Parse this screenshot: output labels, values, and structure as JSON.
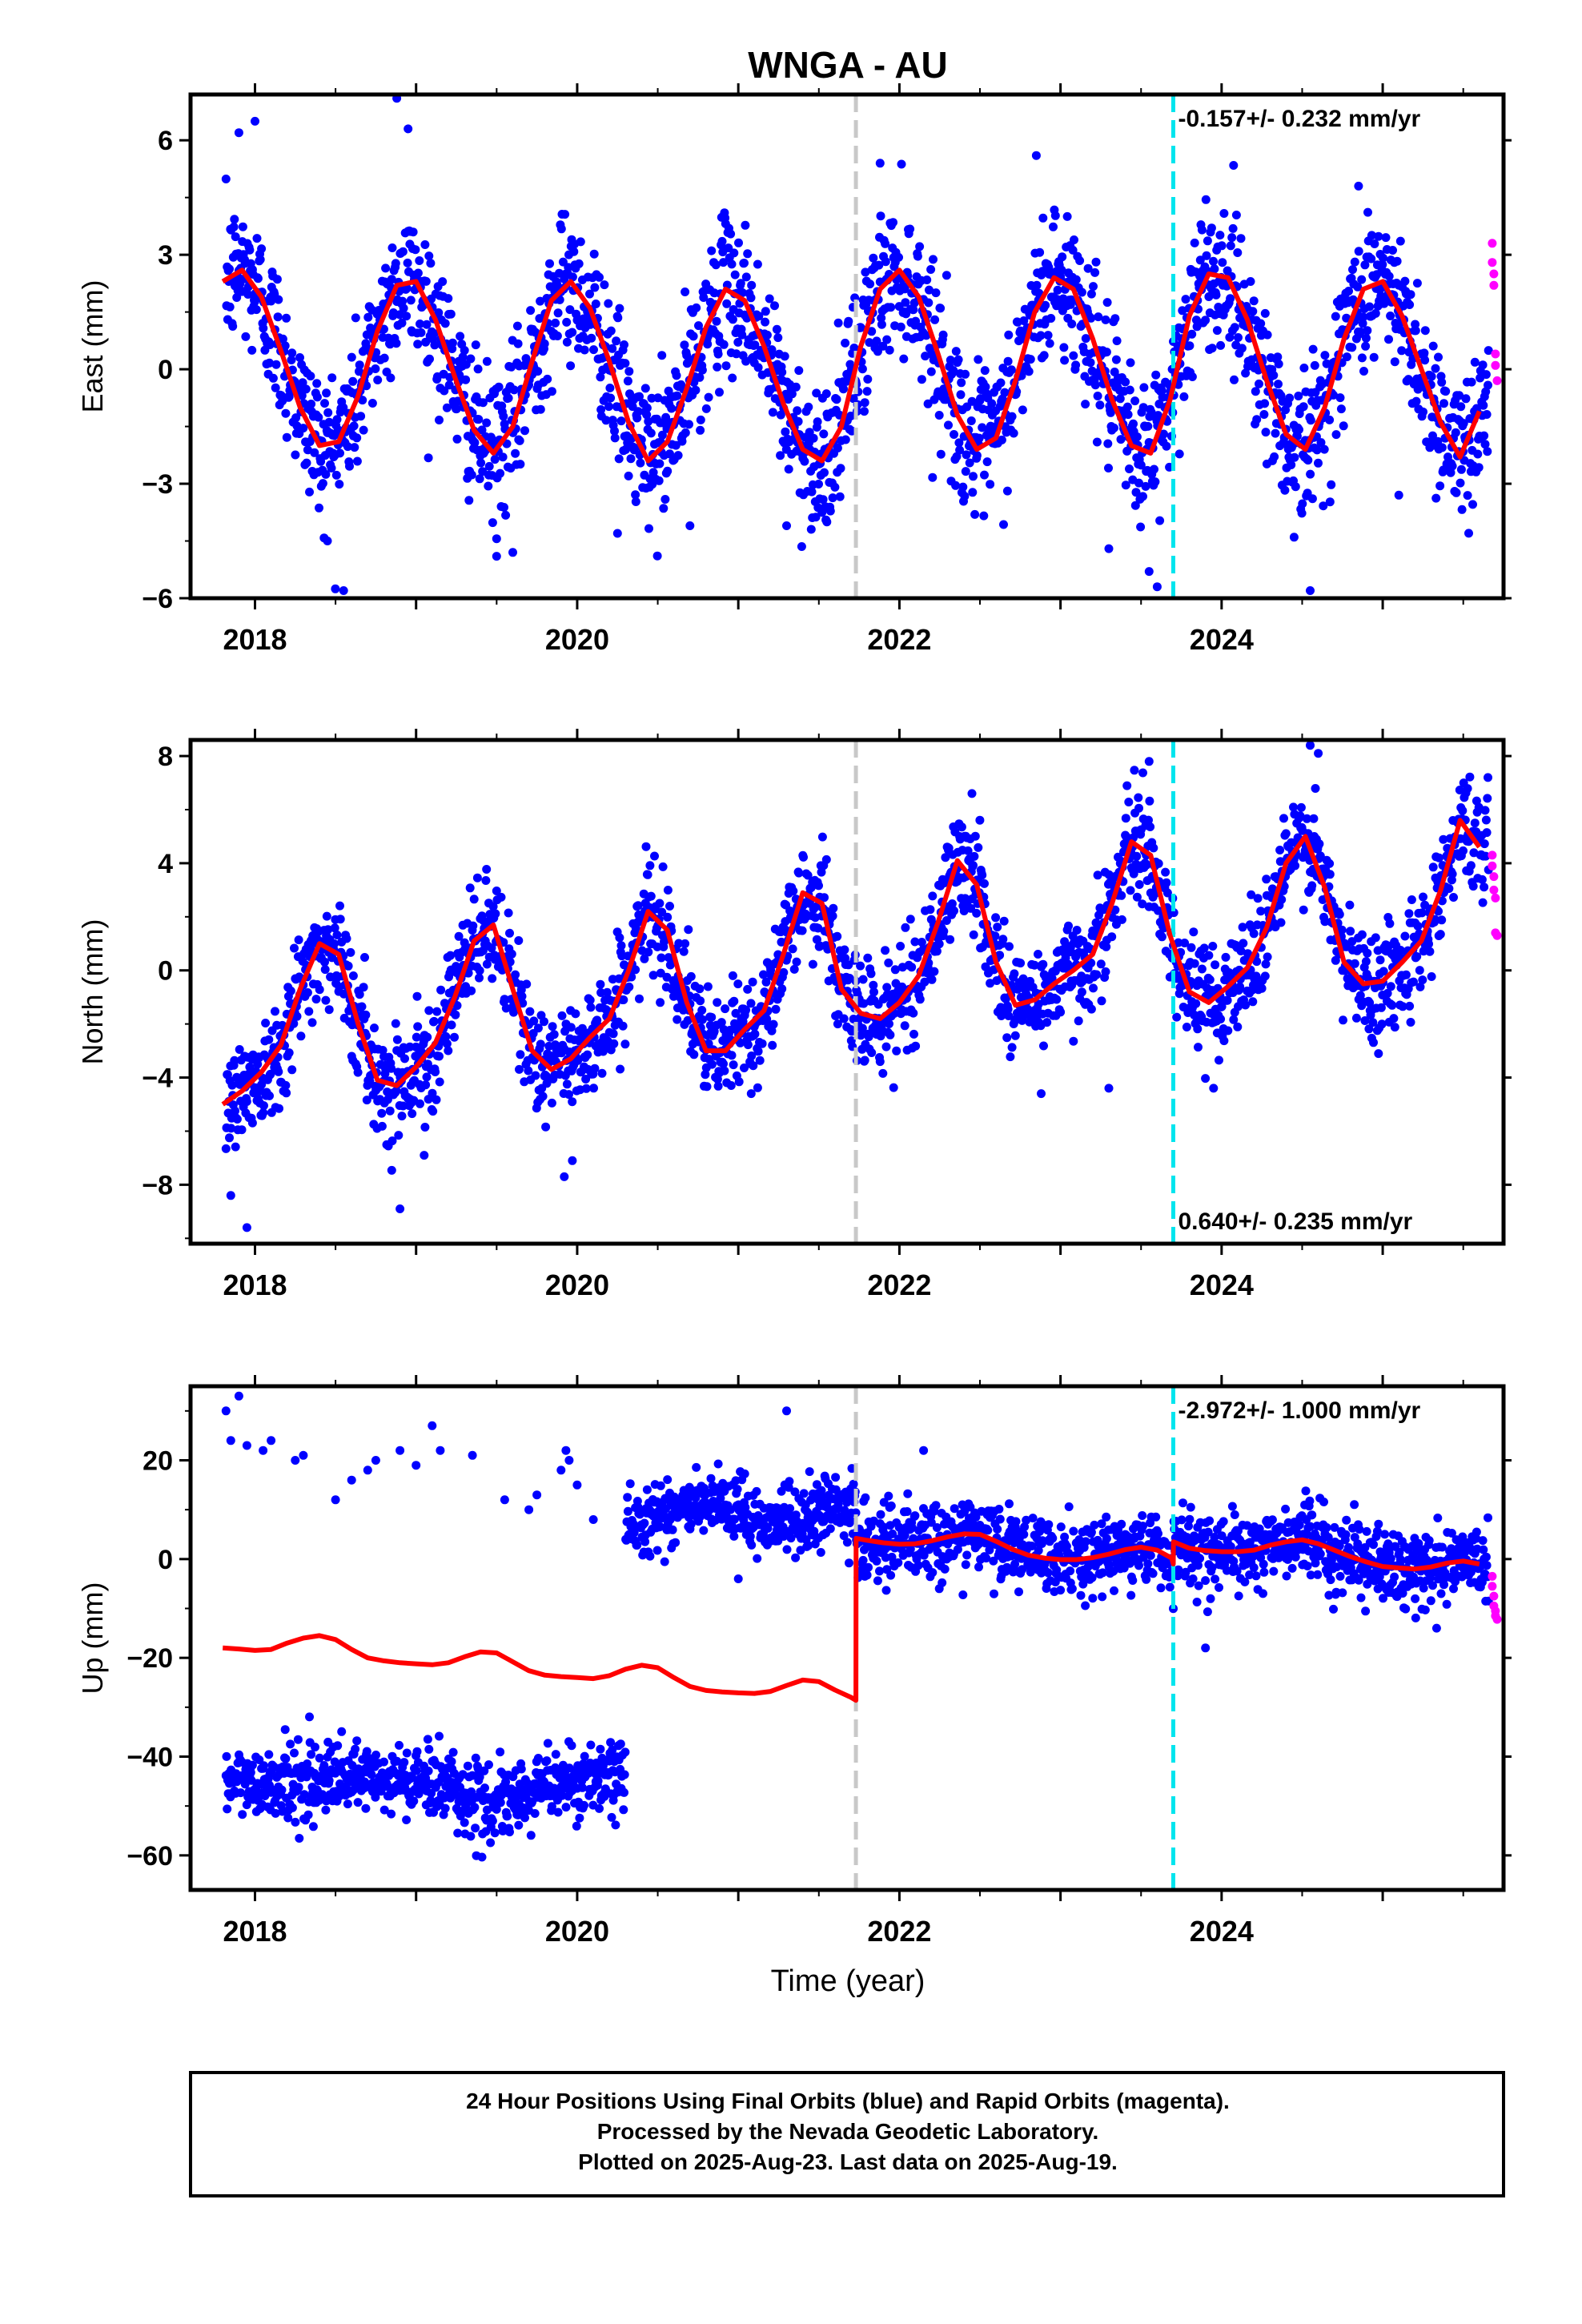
{
  "chart_data": {
    "title": "WNGA - AU",
    "xlabel": "Time (year)",
    "x_ticks": [
      2018,
      2020,
      2022,
      2024
    ],
    "xlim": [
      2017.6,
      2025.75
    ],
    "colors": {
      "final": "#0000ff",
      "rapid": "#ff00ff",
      "model": "#ff0000",
      "equipment_change": "#c8c8c8",
      "other_change": "#00e5ee"
    },
    "vertical_lines": [
      {
        "x": 2021.73,
        "color": "#c8c8c8"
      },
      {
        "x": 2023.7,
        "color": "#00e5ee"
      }
    ],
    "panels": [
      {
        "type": "scatter",
        "ylabel": "East (mm)",
        "ylim": [
          -6,
          7.2
        ],
        "y_ticks": [
          6,
          3,
          0,
          -3,
          -6
        ],
        "rate_text": "-0.157+/- 0.232 mm/yr",
        "rate_position": "top-right",
        "model": {
          "name": "fit",
          "x": [
            2017.8,
            2017.92,
            2018.04,
            2018.16,
            2018.28,
            2018.4,
            2018.52,
            2018.64,
            2018.76,
            2018.88,
            2019.0,
            2019.12,
            2019.24,
            2019.36,
            2019.48,
            2019.6,
            2019.72,
            2019.84,
            2019.96,
            2020.08,
            2020.2,
            2020.32,
            2020.44,
            2020.56,
            2020.68,
            2020.8,
            2020.92,
            2021.04,
            2021.16,
            2021.28,
            2021.4,
            2021.52,
            2021.64,
            2021.76,
            2021.88,
            2022.0,
            2022.12,
            2022.24,
            2022.36,
            2022.48,
            2022.6,
            2022.72,
            2022.84,
            2022.96,
            2023.08,
            2023.2,
            2023.32,
            2023.44,
            2023.56,
            2023.68,
            2023.8,
            2023.92,
            2024.04,
            2024.16,
            2024.28,
            2024.4,
            2024.52,
            2024.64,
            2024.76,
            2024.88,
            2025.0,
            2025.12,
            2025.24,
            2025.36,
            2025.48,
            2025.6
          ],
          "y": [
            2.3,
            2.6,
            1.9,
            0.5,
            -1.0,
            -2.0,
            -1.9,
            -0.7,
            1.0,
            2.2,
            2.3,
            1.3,
            -0.2,
            -1.6,
            -2.2,
            -1.5,
            0.2,
            1.8,
            2.3,
            1.6,
            0.2,
            -1.4,
            -2.4,
            -1.9,
            -0.5,
            1.1,
            2.1,
            1.8,
            0.6,
            -0.9,
            -2.1,
            -2.4,
            -1.5,
            0.6,
            2.1,
            2.6,
            1.9,
            0.4,
            -1.2,
            -2.1,
            -1.8,
            -0.3,
            1.5,
            2.4,
            2.1,
            0.8,
            -0.8,
            -2.0,
            -2.2,
            -0.8,
            1.4,
            2.5,
            2.4,
            1.3,
            -0.3,
            -1.7,
            -2.1,
            -1.0,
            0.8,
            2.1,
            2.3,
            1.4,
            0.0,
            -1.4,
            -2.3,
            -1.1
          ]
        },
        "rapid": {
          "x": [
            2025.68,
            2025.68,
            2025.69,
            2025.69,
            2025.7,
            2025.7,
            2025.71
          ],
          "y": [
            3.3,
            2.8,
            2.5,
            2.2,
            0.4,
            0.1,
            -0.3
          ]
        },
        "scatter_sigma": 0.95,
        "outliers": {
          "x": [
            2017.9,
            2018.0,
            2018.45,
            2018.55,
            2018.88,
            2018.95,
            2019.5,
            2019.6,
            2020.25,
            2020.7,
            2021.3,
            2021.55,
            2021.88,
            2022.85,
            2023.3,
            2023.55,
            2023.6,
            2024.55,
            2024.45,
            2024.85,
            2025.1
          ],
          "y": [
            6.2,
            6.5,
            -4.5,
            -5.8,
            7.1,
            6.3,
            -4.9,
            -4.8,
            -4.3,
            -4.1,
            -4.1,
            -4.0,
            5.4,
            5.6,
            -4.7,
            -5.3,
            -5.7,
            -5.8,
            -4.4,
            4.8,
            -3.3
          ]
        }
      },
      {
        "type": "scatter",
        "ylabel": "North (mm)",
        "ylim": [
          -10.2,
          8.6
        ],
        "y_ticks": [
          8,
          4,
          0,
          -4,
          -8
        ],
        "rate_text": "0.640+/- 0.235 mm/yr",
        "rate_position": "bottom-right",
        "model": {
          "name": "fit",
          "x": [
            2017.8,
            2017.92,
            2018.04,
            2018.16,
            2018.28,
            2018.4,
            2018.52,
            2018.64,
            2018.76,
            2018.88,
            2019.0,
            2019.12,
            2019.24,
            2019.36,
            2019.48,
            2019.6,
            2019.72,
            2019.84,
            2019.96,
            2020.08,
            2020.2,
            2020.32,
            2020.44,
            2020.56,
            2020.68,
            2020.8,
            2020.92,
            2021.04,
            2021.16,
            2021.28,
            2021.4,
            2021.52,
            2021.64,
            2021.76,
            2021.88,
            2022.0,
            2022.12,
            2022.24,
            2022.36,
            2022.48,
            2022.6,
            2022.72,
            2022.84,
            2022.96,
            2023.08,
            2023.2,
            2023.32,
            2023.44,
            2023.56,
            2023.68,
            2023.8,
            2023.92,
            2024.04,
            2024.16,
            2024.28,
            2024.4,
            2024.52,
            2024.64,
            2024.76,
            2024.88,
            2025.0,
            2025.12,
            2025.24,
            2025.36,
            2025.48,
            2025.6
          ],
          "y": [
            -5.0,
            -4.5,
            -3.8,
            -2.8,
            -0.7,
            1.0,
            0.6,
            -2.0,
            -4.1,
            -4.3,
            -3.6,
            -2.7,
            -1.0,
            1.1,
            1.7,
            -0.7,
            -3.0,
            -3.7,
            -3.3,
            -2.5,
            -1.8,
            0.0,
            2.2,
            1.5,
            -1.2,
            -3.0,
            -3.0,
            -2.2,
            -1.5,
            0.6,
            2.9,
            2.5,
            -0.7,
            -1.6,
            -1.8,
            -1.2,
            -0.2,
            1.8,
            4.1,
            3.2,
            0.3,
            -1.3,
            -1.1,
            -0.5,
            0.0,
            0.6,
            2.5,
            4.8,
            4.3,
            1.3,
            -0.8,
            -1.2,
            -0.6,
            0.1,
            1.6,
            4.0,
            5.0,
            3.1,
            0.3,
            -0.5,
            -0.4,
            0.3,
            1.1,
            3.0,
            5.6,
            4.6
          ]
        },
        "rapid": {
          "x": [
            2025.68,
            2025.68,
            2025.69,
            2025.69,
            2025.7,
            2025.7,
            2025.71
          ],
          "y": [
            4.3,
            3.9,
            3.5,
            3.0,
            2.7,
            1.4,
            1.3
          ]
        },
        "scatter_sigma": 1.0,
        "outliers": {
          "x": [
            2017.85,
            2017.95,
            2018.9,
            2019.05,
            2019.92,
            2019.97,
            2021.08,
            2022.45,
            2022.88,
            2023.3,
            2023.55,
            2023.95,
            2024.55,
            2024.6,
            2025.35
          ],
          "y": [
            -8.4,
            -9.6,
            -8.9,
            -6.9,
            -7.7,
            -7.1,
            -4.6,
            6.6,
            -4.6,
            -4.4,
            7.8,
            -4.4,
            8.4,
            8.1,
            4.2
          ]
        }
      },
      {
        "type": "scatter",
        "ylabel": "Up (mm)",
        "ylim": [
          -67,
          35
        ],
        "y_ticks": [
          20,
          0,
          -20,
          -40,
          -60
        ],
        "rate_text": "-2.972+/- 1.000 mm/yr",
        "rate_position": "top-right",
        "model": {
          "name": "fit",
          "x": [
            2017.8,
            2017.9,
            2018.0,
            2018.1,
            2018.2,
            2018.3,
            2018.4,
            2018.5,
            2018.6,
            2018.7,
            2018.8,
            2018.9,
            2019.0,
            2019.1,
            2019.2,
            2019.3,
            2019.4,
            2019.5,
            2019.6,
            2019.7,
            2019.8,
            2019.9,
            2020.0,
            2020.1,
            2020.2,
            2020.3,
            2020.4,
            2020.5,
            2020.6,
            2020.7,
            2020.8,
            2020.9,
            2021.0,
            2021.1,
            2021.2,
            2021.3,
            2021.4,
            2021.5,
            2021.6,
            2021.7,
            2021.73,
            2021.731,
            2021.8,
            2021.9,
            2022.0,
            2022.1,
            2022.2,
            2022.3,
            2022.4,
            2022.5,
            2022.6,
            2022.7,
            2022.8,
            2022.9,
            2023.0,
            2023.1,
            2023.2,
            2023.3,
            2023.4,
            2023.5,
            2023.6,
            2023.69,
            2023.7,
            2023.701,
            2023.8,
            2023.9,
            2024.0,
            2024.1,
            2024.2,
            2024.3,
            2024.4,
            2024.5,
            2024.6,
            2024.7,
            2024.8,
            2024.9,
            2025.0,
            2025.1,
            2025.2,
            2025.3,
            2025.4,
            2025.5,
            2025.6
          ],
          "y": [
            -18.0,
            -18.2,
            -18.5,
            -18.3,
            -17.0,
            -16.0,
            -15.5,
            -16.3,
            -18.3,
            -20.0,
            -20.6,
            -21.0,
            -21.2,
            -21.4,
            -21.0,
            -19.8,
            -18.8,
            -19.0,
            -20.8,
            -22.6,
            -23.5,
            -23.8,
            -24.0,
            -24.2,
            -23.6,
            -22.3,
            -21.5,
            -22.0,
            -24.0,
            -25.8,
            -26.6,
            -26.9,
            -27.1,
            -27.2,
            -26.8,
            -25.6,
            -24.5,
            -24.8,
            -26.5,
            -28.0,
            -28.6,
            4.2,
            3.8,
            3.3,
            3.0,
            3.1,
            3.7,
            4.5,
            5.1,
            5.0,
            3.6,
            2.0,
            0.8,
            0.2,
            -0.1,
            -0.1,
            0.3,
            1.0,
            1.9,
            2.4,
            1.8,
            0.2,
            -1.0,
            3.5,
            2.2,
            1.7,
            1.5,
            1.5,
            1.8,
            2.8,
            3.5,
            3.9,
            3.1,
            1.8,
            0.5,
            -0.6,
            -1.5,
            -1.8,
            -2.0,
            -1.6,
            -0.8,
            -0.4,
            -1.0
          ]
        },
        "rapid": {
          "x": [
            2025.68,
            2025.68,
            2025.69,
            2025.69,
            2025.7,
            2025.7,
            2025.71
          ],
          "y": [
            -3.5,
            -5.5,
            -7.5,
            -9.5,
            -10.5,
            -11.5,
            -12.2
          ]
        },
        "scatter_sigma": 3.6,
        "outliers": {
          "x": [
            2017.82,
            2017.85,
            2017.9,
            2017.95,
            2018.05,
            2018.1,
            2018.25,
            2018.3,
            2018.5,
            2018.6,
            2018.7,
            2018.75,
            2018.9,
            2019.0,
            2019.1,
            2019.15,
            2019.35,
            2019.55,
            2019.7,
            2019.75,
            2019.9,
            2019.93,
            2019.95,
            2020.0,
            2020.1,
            2021.0,
            2021.3,
            2022.15,
            2023.9
          ],
          "y": [
            30,
            24,
            33,
            23,
            22,
            24,
            20,
            21,
            12,
            16,
            18,
            20,
            22,
            19,
            27,
            22,
            21,
            12,
            10,
            13,
            18,
            22,
            20,
            15,
            8,
            -4,
            30,
            22,
            -18
          ]
        }
      }
    ]
  },
  "footer": {
    "line1": "24 Hour Positions Using Final Orbits (blue) and Rapid Orbits (magenta).",
    "line2": "Processed by the Nevada Geodetic Laboratory.",
    "line3": "Plotted on 2025-Aug-23. Last data on 2025-Aug-19."
  }
}
